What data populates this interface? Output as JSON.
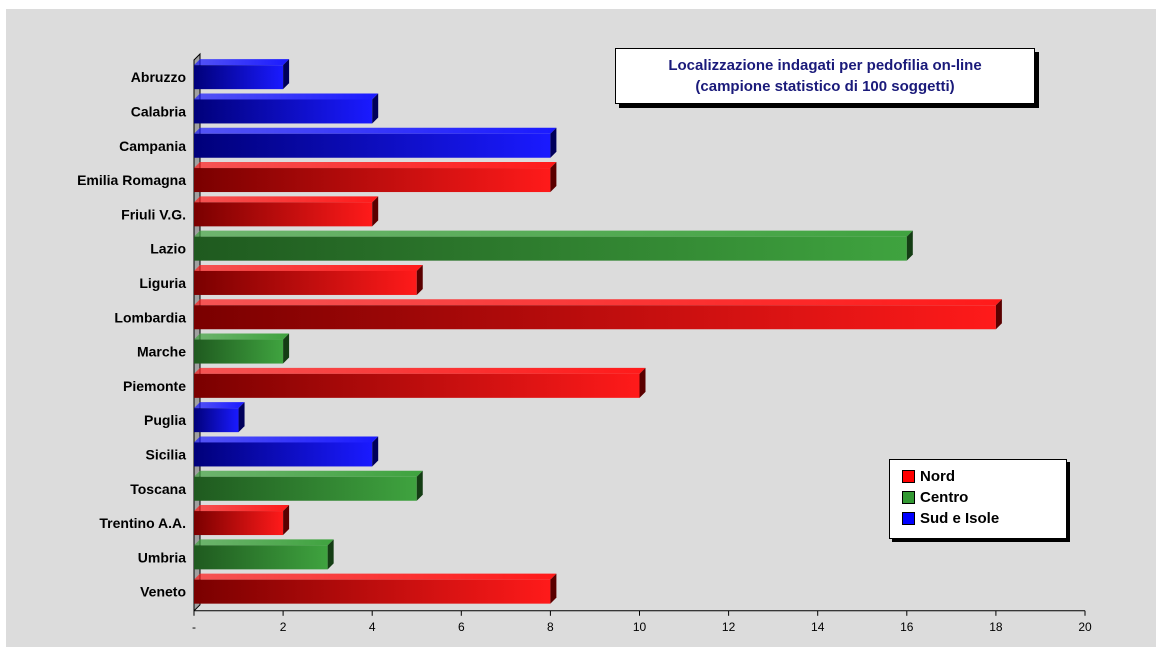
{
  "chart_data": {
    "type": "bar",
    "orientation": "horizontal",
    "title": "Localizzazione indagati per pedofilia on-line",
    "subtitle": "(campione statistico di 100 soggetti)",
    "categories": [
      "Abruzzo",
      "Calabria",
      "Campania",
      "Emilia Romagna",
      "Friuli V.G.",
      "Lazio",
      "Liguria",
      "Lombardia",
      "Marche",
      "Piemonte",
      "Puglia",
      "Sicilia",
      "Toscana",
      "Trentino A.A.",
      "Umbria",
      "Veneto"
    ],
    "values": [
      2,
      4,
      8,
      8,
      4,
      16,
      5,
      18,
      2,
      10,
      1,
      4,
      5,
      2,
      3,
      8
    ],
    "groups": [
      "Sud e Isole",
      "Sud e Isole",
      "Sud e Isole",
      "Nord",
      "Nord",
      "Centro",
      "Nord",
      "Nord",
      "Centro",
      "Nord",
      "Sud e Isole",
      "Sud e Isole",
      "Centro",
      "Nord",
      "Centro",
      "Nord"
    ],
    "xlim": [
      0,
      20
    ],
    "x_ticks": [
      0,
      2,
      4,
      6,
      8,
      10,
      12,
      14,
      16,
      18,
      20
    ],
    "x_tick_labels": [
      "-",
      "2",
      "4",
      "6",
      "8",
      "10",
      "12",
      "14",
      "16",
      "18",
      "20"
    ],
    "legend": {
      "placement": "bottom-right",
      "entries": [
        {
          "name": "Nord",
          "color": "#ff0000"
        },
        {
          "name": "Centro",
          "color": "#339933"
        },
        {
          "name": "Sud e Isole",
          "color": "#0000ff"
        }
      ]
    },
    "colors": {
      "Nord": {
        "dark": "#7a0000",
        "light": "#ff1a1a",
        "side": "#5a0000"
      },
      "Centro": {
        "dark": "#1f5a1f",
        "light": "#3fa33f",
        "side": "#143d14"
      },
      "Sud e Isole": {
        "dark": "#00007a",
        "light": "#1a1aff",
        "side": "#00005a"
      }
    },
    "background": "#dcdcdc",
    "grid": false
  }
}
